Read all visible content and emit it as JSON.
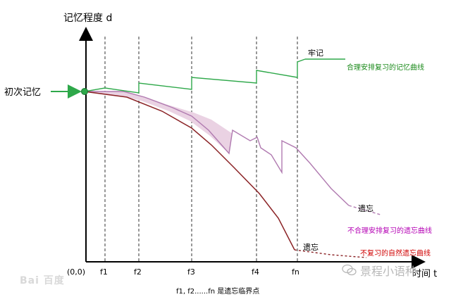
{
  "diagram": {
    "y_axis_label": "记忆程度 d",
    "x_axis_label": "时间 t",
    "origin_label": "(0,0)",
    "first_memory_label": "初次记忆",
    "ticks": [
      "f1",
      "f2",
      "f3",
      "f4",
      "fn"
    ],
    "caption": "f1, f2......fn 是遗忘临界点",
    "labels": {
      "firm": "牢记",
      "reasonable_curve": "合理安排复习的记忆曲线",
      "forget_upper": "遗忘",
      "unreasonable_curve": "不合理安排复习的遗忘曲线",
      "forget_lower": "遗忘",
      "natural_curve": "不复习的自然遗忘曲线"
    },
    "colors": {
      "green": "#2ea84a",
      "purple": "#b07ab0",
      "pink_fill": "#ead2e3",
      "dark_red": "#8b2326",
      "magenta_text": "#b400b4",
      "red_text": "#d00000"
    }
  },
  "watermarks": {
    "left": "Bai 百度",
    "right": "景程小语种"
  }
}
